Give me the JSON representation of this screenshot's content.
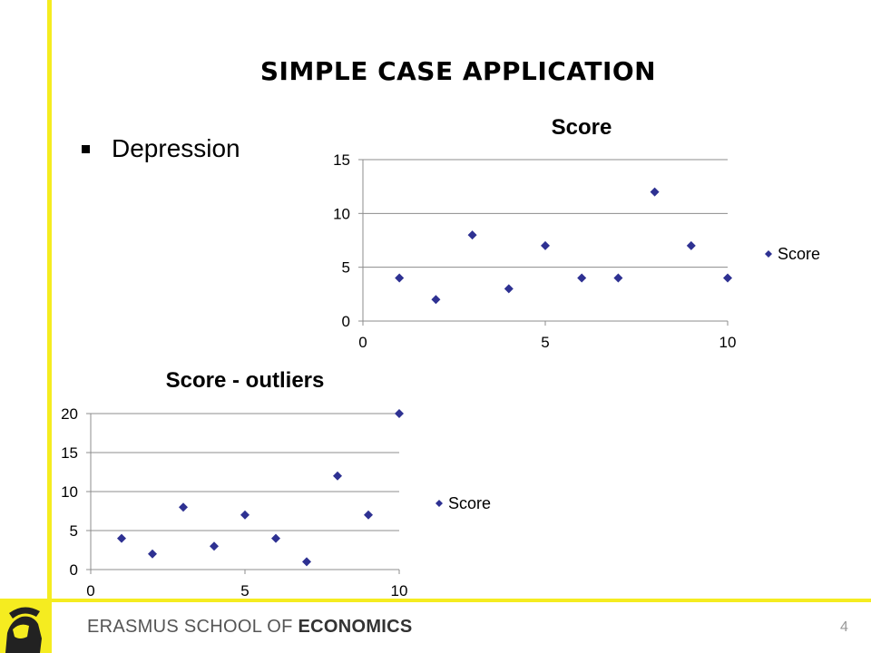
{
  "slide": {
    "title": "SIMPLE CASE APPLICATION",
    "bullet": "Depression",
    "footer_brand_light": "ERASMUS SCHOOL OF ",
    "footer_brand_bold": "ECONOMICS",
    "page_number": "4",
    "accent_color": "#f5ec20",
    "marker_color": "#2e3192"
  },
  "chart_data": [
    {
      "type": "scatter",
      "title": "Score",
      "series": [
        {
          "name": "Score",
          "x": [
            1,
            2,
            3,
            4,
            5,
            6,
            7,
            8,
            9,
            10
          ],
          "y": [
            4,
            2,
            8,
            3,
            7,
            4,
            4,
            12,
            7,
            4
          ]
        }
      ],
      "xlim": [
        0,
        10
      ],
      "ylim": [
        0,
        15
      ],
      "xticks": [
        0,
        5,
        10
      ],
      "yticks": [
        0,
        5,
        10,
        15
      ],
      "grid": "horizontal",
      "legend": "right"
    },
    {
      "type": "scatter",
      "title": "Score - outliers",
      "series": [
        {
          "name": "Score",
          "x": [
            1,
            2,
            3,
            4,
            5,
            6,
            7,
            8,
            9,
            10
          ],
          "y": [
            4,
            2,
            8,
            3,
            7,
            4,
            1,
            12,
            7,
            20
          ]
        }
      ],
      "xlim": [
        0,
        10
      ],
      "ylim": [
        0,
        20
      ],
      "xticks": [
        0,
        5,
        10
      ],
      "yticks": [
        0,
        5,
        10,
        15,
        20
      ],
      "grid": "horizontal",
      "legend": "right"
    }
  ]
}
